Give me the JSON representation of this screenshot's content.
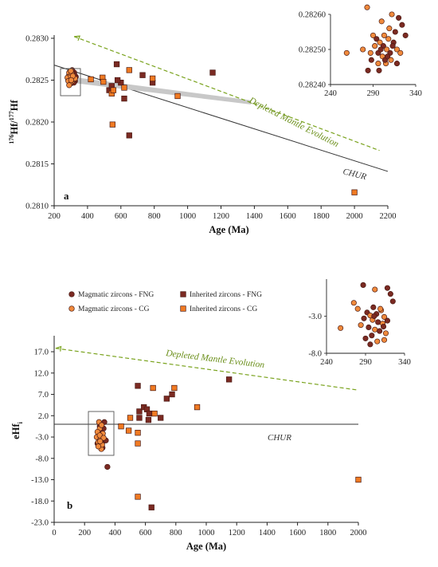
{
  "colors": {
    "magmatic_fng": "#7b2a22",
    "magmatic_cg": "#f08a3c",
    "inherited_fng": "#7b2a22",
    "inherited_cg": "#f07a22",
    "depleted_mantle": "#7aa31e",
    "chur": "#333333",
    "band": "#c8c8c8"
  },
  "chart_data": [
    {
      "type": "scatter",
      "panel_label": "a",
      "ylabel_parts": [
        "176",
        "Hf/",
        "177",
        "Hf"
      ],
      "xlabel": "Age (Ma)",
      "xlim": [
        200,
        2200
      ],
      "ylim": [
        0.281,
        0.283
      ],
      "xticks": [
        "200",
        "400",
        "600",
        "800",
        "1000",
        "1200",
        "1400",
        "1600",
        "1800",
        "2000",
        "2200"
      ],
      "yticks": [
        "0.2810",
        "0.2815",
        "0.2820",
        "0.2825",
        "0.2830"
      ],
      "lines": {
        "depleted_mantle": {
          "label": "Depleted Mantle Evolution",
          "from": [
            320,
            0.28302
          ],
          "to": [
            2150,
            0.28166
          ]
        },
        "chur": {
          "label": "CHUR",
          "from": [
            200,
            0.28268
          ],
          "to": [
            2200,
            0.28141
          ]
        },
        "crustal_band": {
          "top_from": [
            300,
            0.28254
          ],
          "top_to": [
            1380,
            0.28226
          ],
          "bottom_from": [
            300,
            0.28247
          ],
          "bottom_to": [
            1380,
            0.28221
          ]
        }
      },
      "series": [
        {
          "name": "Inherited zircons - FNG",
          "marker": "square",
          "points": [
            [
              575,
              0.28269
            ],
            [
              530,
              0.28238
            ],
            [
              600,
              0.28247
            ],
            [
              620,
              0.28228
            ],
            [
              650,
              0.28184
            ],
            [
              730,
              0.28256
            ],
            [
              790,
              0.28247
            ],
            [
              1150,
              0.28259
            ],
            [
              580,
              0.2825
            ],
            [
              545,
              0.28243
            ]
          ]
        },
        {
          "name": "Inherited zircons - CG",
          "marker": "square",
          "points": [
            [
              420,
              0.28251
            ],
            [
              490,
              0.28253
            ],
            [
              495,
              0.28248
            ],
            [
              545,
              0.28234
            ],
            [
              555,
              0.28238
            ],
            [
              550,
              0.28197
            ],
            [
              620,
              0.28241
            ],
            [
              650,
              0.28262
            ],
            [
              790,
              0.28252
            ],
            [
              940,
              0.28231
            ],
            [
              2000,
              0.28116
            ]
          ]
        },
        {
          "name": "Magmatic zircons - FNG",
          "marker": "circle",
          "points": [
            [
              290,
              0.28256
            ],
            [
              305,
              0.28251
            ],
            [
              315,
              0.2825
            ],
            [
              320,
              0.28259
            ],
            [
              300,
              0.28246
            ],
            [
              330,
              0.28254
            ],
            [
              295,
              0.28252
            ],
            [
              310,
              0.28257
            ],
            [
              325,
              0.28249
            ],
            [
              285,
              0.2825
            ],
            [
              300,
              0.28253
            ],
            [
              318,
              0.28247
            ],
            [
              308,
              0.28262
            ],
            [
              295,
              0.28248
            ],
            [
              322,
              0.28256
            ]
          ]
        },
        {
          "name": "Magmatic zircons - CG",
          "marker": "circle",
          "points": [
            [
              280,
              0.28253
            ],
            [
              290,
              0.28259
            ],
            [
              300,
              0.28255
            ],
            [
              310,
              0.28249
            ],
            [
              320,
              0.28251
            ],
            [
              295,
              0.28246
            ],
            [
              305,
              0.28258
            ],
            [
              315,
              0.28253
            ],
            [
              285,
              0.28249
            ],
            [
              300,
              0.28261
            ],
            [
              325,
              0.28252
            ],
            [
              290,
              0.28244
            ],
            [
              312,
              0.28255
            ],
            [
              302,
              0.2825
            ]
          ]
        }
      ],
      "inset": {
        "xlim": [
          240,
          340
        ],
        "ylim": [
          0.2824,
          0.2826
        ],
        "xticks": [
          "240",
          "290",
          "340"
        ],
        "yticks": [
          "0.28240",
          "0.28250",
          "0.28260"
        ],
        "points": [
          {
            "series": "Magmatic zircons - CG",
            "x": 283,
            "y": 0.28262
          },
          {
            "series": "Magmatic zircons - CG",
            "x": 259,
            "y": 0.28249
          },
          {
            "series": "Magmatic zircons - CG",
            "x": 278,
            "y": 0.2825
          },
          {
            "series": "Magmatic zircons - FNG",
            "x": 284,
            "y": 0.28244
          },
          {
            "series": "Magmatic zircons - FNG",
            "x": 297,
            "y": 0.28244
          },
          {
            "series": "Magmatic zircons - CG",
            "x": 305,
            "y": 0.28246
          },
          {
            "series": "Magmatic zircons - FNG",
            "x": 320,
            "y": 0.28259
          },
          {
            "series": "Magmatic zircons - FNG",
            "x": 324,
            "y": 0.28257
          },
          {
            "series": "Magmatic zircons - CG",
            "x": 312,
            "y": 0.2826
          },
          {
            "series": "Magmatic zircons - CG",
            "x": 300,
            "y": 0.28258
          },
          {
            "series": "Magmatic zircons - FNG",
            "x": 328,
            "y": 0.28254
          },
          {
            "series": "Magmatic zircons - CG",
            "x": 290,
            "y": 0.28254
          },
          {
            "series": "Magmatic zircons - FNG",
            "x": 294,
            "y": 0.28253
          },
          {
            "series": "Magmatic zircons - CG",
            "x": 298,
            "y": 0.28252
          },
          {
            "series": "Magmatic zircons - FNG",
            "x": 302,
            "y": 0.28251
          },
          {
            "series": "Magmatic zircons - CG",
            "x": 306,
            "y": 0.2825
          },
          {
            "series": "Magmatic zircons - FNG",
            "x": 310,
            "y": 0.28249
          },
          {
            "series": "Magmatic zircons - CG",
            "x": 287,
            "y": 0.28249
          },
          {
            "series": "Magmatic zircons - FNG",
            "x": 296,
            "y": 0.28249
          },
          {
            "series": "Magmatic zircons - CG",
            "x": 301,
            "y": 0.28248
          },
          {
            "series": "Magmatic zircons - FNG",
            "x": 304,
            "y": 0.28247
          },
          {
            "series": "Magmatic zircons - CG",
            "x": 308,
            "y": 0.28253
          },
          {
            "series": "Magmatic zircons - FNG",
            "x": 314,
            "y": 0.28252
          },
          {
            "series": "Magmatic zircons - CG",
            "x": 318,
            "y": 0.2825
          },
          {
            "series": "Magmatic zircons - FNG",
            "x": 316,
            "y": 0.28255
          },
          {
            "series": "Magmatic zircons - CG",
            "x": 292,
            "y": 0.28251
          },
          {
            "series": "Magmatic zircons - FNG",
            "x": 299,
            "y": 0.2825
          },
          {
            "series": "Magmatic zircons - CG",
            "x": 303,
            "y": 0.28254
          },
          {
            "series": "Magmatic zircons - FNG",
            "x": 307,
            "y": 0.28248
          },
          {
            "series": "Magmatic zircons - CG",
            "x": 311,
            "y": 0.28247
          },
          {
            "series": "Magmatic zircons - FNG",
            "x": 313,
            "y": 0.28251
          },
          {
            "series": "Magmatic zircons - CG",
            "x": 322,
            "y": 0.28249
          },
          {
            "series": "Magmatic zircons - FNG",
            "x": 288,
            "y": 0.28247
          },
          {
            "series": "Magmatic zircons - CG",
            "x": 309,
            "y": 0.28256
          },
          {
            "series": "Magmatic zircons - FNG",
            "x": 318,
            "y": 0.28246
          },
          {
            "series": "Magmatic zircons - CG",
            "x": 296,
            "y": 0.28246
          }
        ]
      }
    },
    {
      "type": "scatter",
      "panel_label": "b",
      "ylabel_parts": [
        "eHf",
        "i"
      ],
      "xlabel": "Age (Ma)",
      "xlim": [
        0,
        2000
      ],
      "ylim": [
        -23,
        20
      ],
      "xticks": [
        "0",
        "200",
        "400",
        "600",
        "800",
        "1000",
        "1200",
        "1400",
        "1600",
        "1800",
        "2000"
      ],
      "yticks": [
        "-23.0",
        "-18.0",
        "-13.0",
        "-8.0",
        "-3.0",
        "2.0",
        "7.0",
        "12.0",
        "17.0"
      ],
      "legend": [
        {
          "label": "Magmatic zircons - FNG",
          "marker": "circle",
          "color_key": "magmatic_fng"
        },
        {
          "label": "Inherited zircons - FNG",
          "marker": "square",
          "color_key": "inherited_fng"
        },
        {
          "label": "Magmatic zircons - CG",
          "marker": "circle",
          "color_key": "magmatic_cg"
        },
        {
          "label": "Inherited zircons - CG",
          "marker": "square",
          "color_key": "inherited_cg"
        }
      ],
      "lines": {
        "depleted_mantle": {
          "label": "Depleted Mantle Evolution",
          "from": [
            10,
            17.8
          ],
          "to": [
            2000,
            8.0
          ]
        },
        "chur": {
          "label": "CHUR",
          "from": [
            0,
            0
          ],
          "to": [
            2000,
            0
          ]
        }
      },
      "series": [
        {
          "name": "Inherited zircons - FNG",
          "marker": "square",
          "points": [
            [
              550,
              9.0
            ],
            [
              560,
              3.0
            ],
            [
              590,
              4.0
            ],
            [
              610,
              3.5
            ],
            [
              620,
              1.0
            ],
            [
              625,
              2.5
            ],
            [
              560,
              1.5
            ],
            [
              700,
              1.5
            ],
            [
              740,
              6.0
            ],
            [
              775,
              7.0
            ],
            [
              1150,
              10.5
            ],
            [
              640,
              -19.5
            ]
          ]
        },
        {
          "name": "Inherited zircons - CG",
          "marker": "square",
          "points": [
            [
              440,
              -0.5
            ],
            [
              490,
              -1.5
            ],
            [
              500,
              1.5
            ],
            [
              550,
              -2.0
            ],
            [
              550,
              -4.5
            ],
            [
              650,
              8.5
            ],
            [
              660,
              2.5
            ],
            [
              790,
              8.5
            ],
            [
              940,
              4.0
            ],
            [
              550,
              -17.0
            ],
            [
              2000,
              -13.0
            ]
          ]
        },
        {
          "name": "Magmatic zircons - FNG",
          "marker": "circle",
          "points": [
            [
              290,
              -2.0
            ],
            [
              300,
              -3.5
            ],
            [
              310,
              -1.5
            ],
            [
              320,
              -4.0
            ],
            [
              330,
              0.5
            ],
            [
              295,
              -5.0
            ],
            [
              305,
              -2.5
            ],
            [
              315,
              -3.0
            ],
            [
              325,
              -1.0
            ],
            [
              285,
              -4.5
            ],
            [
              300,
              -0.5
            ],
            [
              318,
              -5.5
            ],
            [
              308,
              -2.8
            ],
            [
              350,
              -10.0
            ],
            [
              340,
              -3.8
            ]
          ]
        },
        {
          "name": "Magmatic zircons - CG",
          "marker": "circle",
          "points": [
            [
              280,
              -3.0
            ],
            [
              290,
              -4.2
            ],
            [
              300,
              -1.0
            ],
            [
              310,
              -5.8
            ],
            [
              320,
              -2.2
            ],
            [
              295,
              0.5
            ],
            [
              305,
              -3.5
            ],
            [
              315,
              -4.8
            ],
            [
              285,
              -1.8
            ],
            [
              300,
              -2.6
            ],
            [
              325,
              -3.2
            ],
            [
              290,
              -5.2
            ],
            [
              312,
              -0.2
            ],
            [
              302,
              -4.0
            ]
          ]
        }
      ],
      "inset": {
        "xlim": [
          240,
          340
        ],
        "ylim": [
          -8,
          2
        ],
        "xticks": [
          "240",
          "290",
          "340"
        ],
        "yticks": [
          "-8.0",
          "-3.0"
        ],
        "points": [
          {
            "series": "Magmatic zircons - FNG",
            "x": 287,
            "y": 1.2
          },
          {
            "series": "Magmatic zircons - FNG",
            "x": 318,
            "y": 0.8
          },
          {
            "series": "Magmatic zircons - CG",
            "x": 302,
            "y": 0.6
          },
          {
            "series": "Magmatic zircons - FNG",
            "x": 322,
            "y": 0.0
          },
          {
            "series": "Magmatic zircons - CG",
            "x": 275,
            "y": -1.2
          },
          {
            "series": "Magmatic zircons - FNG",
            "x": 325,
            "y": -1.0
          },
          {
            "series": "Magmatic zircons - CG",
            "x": 280,
            "y": -2.0
          },
          {
            "series": "Magmatic zircons - FNG",
            "x": 300,
            "y": -1.8
          },
          {
            "series": "Magmatic zircons - CG",
            "x": 310,
            "y": -2.2
          },
          {
            "series": "Magmatic zircons - FNG",
            "x": 292,
            "y": -2.5
          },
          {
            "series": "Magmatic zircons - CG",
            "x": 296,
            "y": -2.9
          },
          {
            "series": "Magmatic zircons - FNG",
            "x": 304,
            "y": -2.7
          },
          {
            "series": "Magmatic zircons - CG",
            "x": 314,
            "y": -3.1
          },
          {
            "series": "Magmatic zircons - FNG",
            "x": 288,
            "y": -3.3
          },
          {
            "series": "Magmatic zircons - CG",
            "x": 299,
            "y": -3.5
          },
          {
            "series": "Magmatic zircons - FNG",
            "x": 306,
            "y": -3.8
          },
          {
            "series": "Magmatic zircons - CG",
            "x": 312,
            "y": -4.0
          },
          {
            "series": "Magmatic zircons - FNG",
            "x": 318,
            "y": -3.6
          },
          {
            "series": "Magmatic zircons - CG",
            "x": 284,
            "y": -4.2
          },
          {
            "series": "Magmatic zircons - FNG",
            "x": 294,
            "y": -4.5
          },
          {
            "series": "Magmatic zircons - CG",
            "x": 302,
            "y": -4.8
          },
          {
            "series": "Magmatic zircons - FNG",
            "x": 308,
            "y": -5.0
          },
          {
            "series": "Magmatic zircons - CG",
            "x": 258,
            "y": -4.6
          },
          {
            "series": "Magmatic zircons - FNG",
            "x": 298,
            "y": -5.6
          },
          {
            "series": "Magmatic zircons - CG",
            "x": 316,
            "y": -5.3
          },
          {
            "series": "Magmatic zircons - FNG",
            "x": 290,
            "y": -6.0
          },
          {
            "series": "Magmatic zircons - CG",
            "x": 305,
            "y": -6.4
          },
          {
            "series": "Magmatic zircons - FNG",
            "x": 296,
            "y": -6.8
          },
          {
            "series": "Magmatic zircons - CG",
            "x": 314,
            "y": -6.2
          },
          {
            "series": "Magmatic zircons - FNG",
            "x": 301,
            "y": -3.0
          },
          {
            "series": "Magmatic zircons - CG",
            "x": 309,
            "y": -2.0
          },
          {
            "series": "Magmatic zircons - FNG",
            "x": 313,
            "y": -4.4
          }
        ]
      }
    }
  ]
}
